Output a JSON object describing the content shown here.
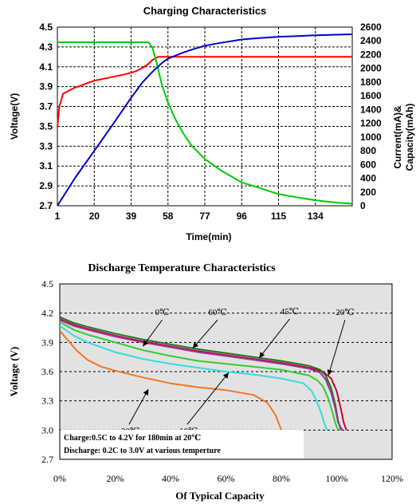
{
  "chart_data": [
    {
      "type": "line",
      "title": "Charging  Characteristics",
      "xlabel": "Time(min)",
      "ylabel": "Voltage(V)",
      "y2label_line1": "Current(mA)&",
      "y2label_line2": "Capacity(mAh)",
      "x_ticks": [
        "1",
        "20",
        "39",
        "58",
        "77",
        "96",
        "115",
        "134"
      ],
      "y_ticks": [
        "2.7",
        "2.9",
        "3.1",
        "3.3",
        "3.5",
        "3.7",
        "3.9",
        "4.1",
        "4.3",
        "4.5"
      ],
      "y2_ticks": [
        "0",
        "200",
        "400",
        "600",
        "800",
        "1000",
        "1200",
        "1400",
        "1600",
        "1800",
        "2000",
        "2200",
        "2400",
        "2600"
      ],
      "xlim": [
        1,
        153
      ],
      "ylim": [
        2.7,
        4.5
      ],
      "y2lim": [
        0,
        2600
      ],
      "grid": true,
      "series": [
        {
          "axis": "left",
          "color": "#ff0000",
          "x": [
            1,
            2,
            4,
            6,
            8,
            10,
            13,
            17,
            20,
            25,
            30,
            35,
            39,
            42,
            45,
            48,
            50,
            52,
            53,
            60,
            80,
            100,
            120,
            140,
            153
          ],
          "y": [
            3.49,
            3.7,
            3.83,
            3.85,
            3.87,
            3.89,
            3.91,
            3.94,
            3.96,
            3.98,
            4.0,
            4.02,
            4.04,
            4.06,
            4.09,
            4.13,
            4.17,
            4.19,
            4.2,
            4.2,
            4.2,
            4.2,
            4.2,
            4.2,
            4.2
          ]
        },
        {
          "axis": "right",
          "color": "#00cc00",
          "x": [
            1,
            10,
            20,
            30,
            40,
            45,
            48,
            50,
            52,
            55,
            58,
            62,
            66,
            70,
            77,
            85,
            96,
            105,
            115,
            125,
            134,
            145,
            153
          ],
          "y": [
            2380,
            2380,
            2380,
            2380,
            2380,
            2380,
            2380,
            2300,
            2100,
            1750,
            1500,
            1250,
            1050,
            880,
            680,
            520,
            340,
            260,
            170,
            120,
            80,
            45,
            30
          ]
        },
        {
          "axis": "right",
          "color": "#0000cc",
          "x": [
            1,
            10,
            20,
            30,
            39,
            45,
            50,
            55,
            58,
            65,
            70,
            77,
            85,
            96,
            105,
            115,
            125,
            134,
            145,
            153
          ],
          "y": [
            0,
            400,
            800,
            1200,
            1570,
            1800,
            1950,
            2080,
            2140,
            2220,
            2270,
            2330,
            2370,
            2420,
            2440,
            2460,
            2470,
            2480,
            2490,
            2495
          ]
        }
      ]
    },
    {
      "type": "line",
      "title": "Discharge Temperature Characteristics",
      "xlabel": "Of Typical Capacity",
      "ylabel": "Voltage (V)",
      "x_ticks": [
        "0%",
        "20%",
        "40%",
        "60%",
        "80%",
        "100%",
        "120%"
      ],
      "y_ticks": [
        "2.7",
        "3.0",
        "3.3",
        "3.6",
        "3.9",
        "4.2",
        "4.5"
      ],
      "xlim": [
        0,
        120
      ],
      "ylim": [
        2.7,
        4.5
      ],
      "grid": true,
      "note_line1": "Charge:0.5C to 4.2V for 180min at 20℃",
      "note_line2": "Discharge: 0.2C to 3.0V at various temperture",
      "series": [
        {
          "name": "20℃",
          "color": "#cc0033",
          "x": [
            0,
            5,
            10,
            20,
            30,
            40,
            50,
            60,
            70,
            80,
            90,
            95,
            98,
            100,
            101.5,
            102.5,
            103.5
          ],
          "y": [
            4.14,
            4.08,
            4.04,
            3.97,
            3.91,
            3.86,
            3.81,
            3.77,
            3.73,
            3.69,
            3.64,
            3.6,
            3.53,
            3.4,
            3.22,
            3.08,
            3.0
          ]
        },
        {
          "name": "45℃",
          "color": "#1a7a1a",
          "x": [
            0,
            5,
            10,
            20,
            30,
            40,
            50,
            60,
            70,
            80,
            90,
            94,
            96,
            98,
            99.5,
            100.5,
            101.5
          ],
          "y": [
            4.16,
            4.1,
            4.06,
            3.99,
            3.93,
            3.88,
            3.83,
            3.79,
            3.75,
            3.71,
            3.66,
            3.62,
            3.56,
            3.43,
            3.26,
            3.1,
            3.0
          ]
        },
        {
          "name": "60℃",
          "color": "#993399",
          "x": [
            0,
            5,
            10,
            20,
            30,
            40,
            50,
            60,
            70,
            80,
            90,
            94,
            96,
            98,
            99.5,
            100.5,
            102
          ],
          "y": [
            4.13,
            4.07,
            4.03,
            3.96,
            3.9,
            3.85,
            3.8,
            3.76,
            3.72,
            3.68,
            3.63,
            3.59,
            3.52,
            3.38,
            3.22,
            3.08,
            3.0
          ]
        },
        {
          "name": "0℃",
          "color": "#33cc33",
          "x": [
            0,
            5,
            10,
            20,
            30,
            40,
            50,
            60,
            70,
            80,
            90,
            93,
            95,
            97,
            98.5,
            99.5,
            100.5
          ],
          "y": [
            4.11,
            4.03,
            3.98,
            3.9,
            3.82,
            3.76,
            3.71,
            3.68,
            3.65,
            3.62,
            3.56,
            3.51,
            3.45,
            3.32,
            3.18,
            3.07,
            3.0
          ]
        },
        {
          "name": "-10℃",
          "color": "#33dddd",
          "x": [
            0,
            5,
            10,
            20,
            30,
            40,
            50,
            60,
            70,
            80,
            88,
            91,
            93,
            94.5,
            95.5,
            96.5
          ],
          "y": [
            4.07,
            3.97,
            3.9,
            3.8,
            3.73,
            3.68,
            3.64,
            3.6,
            3.57,
            3.53,
            3.48,
            3.4,
            3.28,
            3.17,
            3.07,
            3.0
          ]
        },
        {
          "name": "-20℃",
          "color": "#ee7722",
          "x": [
            0,
            3,
            6,
            10,
            15,
            20,
            30,
            40,
            50,
            60,
            70,
            75,
            78,
            80
          ],
          "y": [
            4.02,
            3.92,
            3.82,
            3.72,
            3.65,
            3.61,
            3.54,
            3.48,
            3.44,
            3.41,
            3.36,
            3.28,
            3.15,
            3.0
          ]
        }
      ],
      "annotations": [
        {
          "label": "0℃",
          "tx": 37,
          "ty": 4.18,
          "ax": 30,
          "ay": 3.86
        },
        {
          "label": "60℃",
          "tx": 57,
          "ty": 4.18,
          "ax": 48,
          "ay": 3.84
        },
        {
          "label": "45℃",
          "tx": 83,
          "ty": 4.19,
          "ax": 72,
          "ay": 3.74
        },
        {
          "label": "20℃",
          "tx": 103,
          "ty": 4.18,
          "ax": 97,
          "ay": 3.56
        },
        {
          "label": "-20℃",
          "tx": 25,
          "ty": 2.96,
          "ax": 32,
          "ay": 3.42
        },
        {
          "label": "-10℃",
          "tx": 46,
          "ty": 2.96,
          "ax": 61,
          "ay": 3.59
        }
      ]
    }
  ]
}
